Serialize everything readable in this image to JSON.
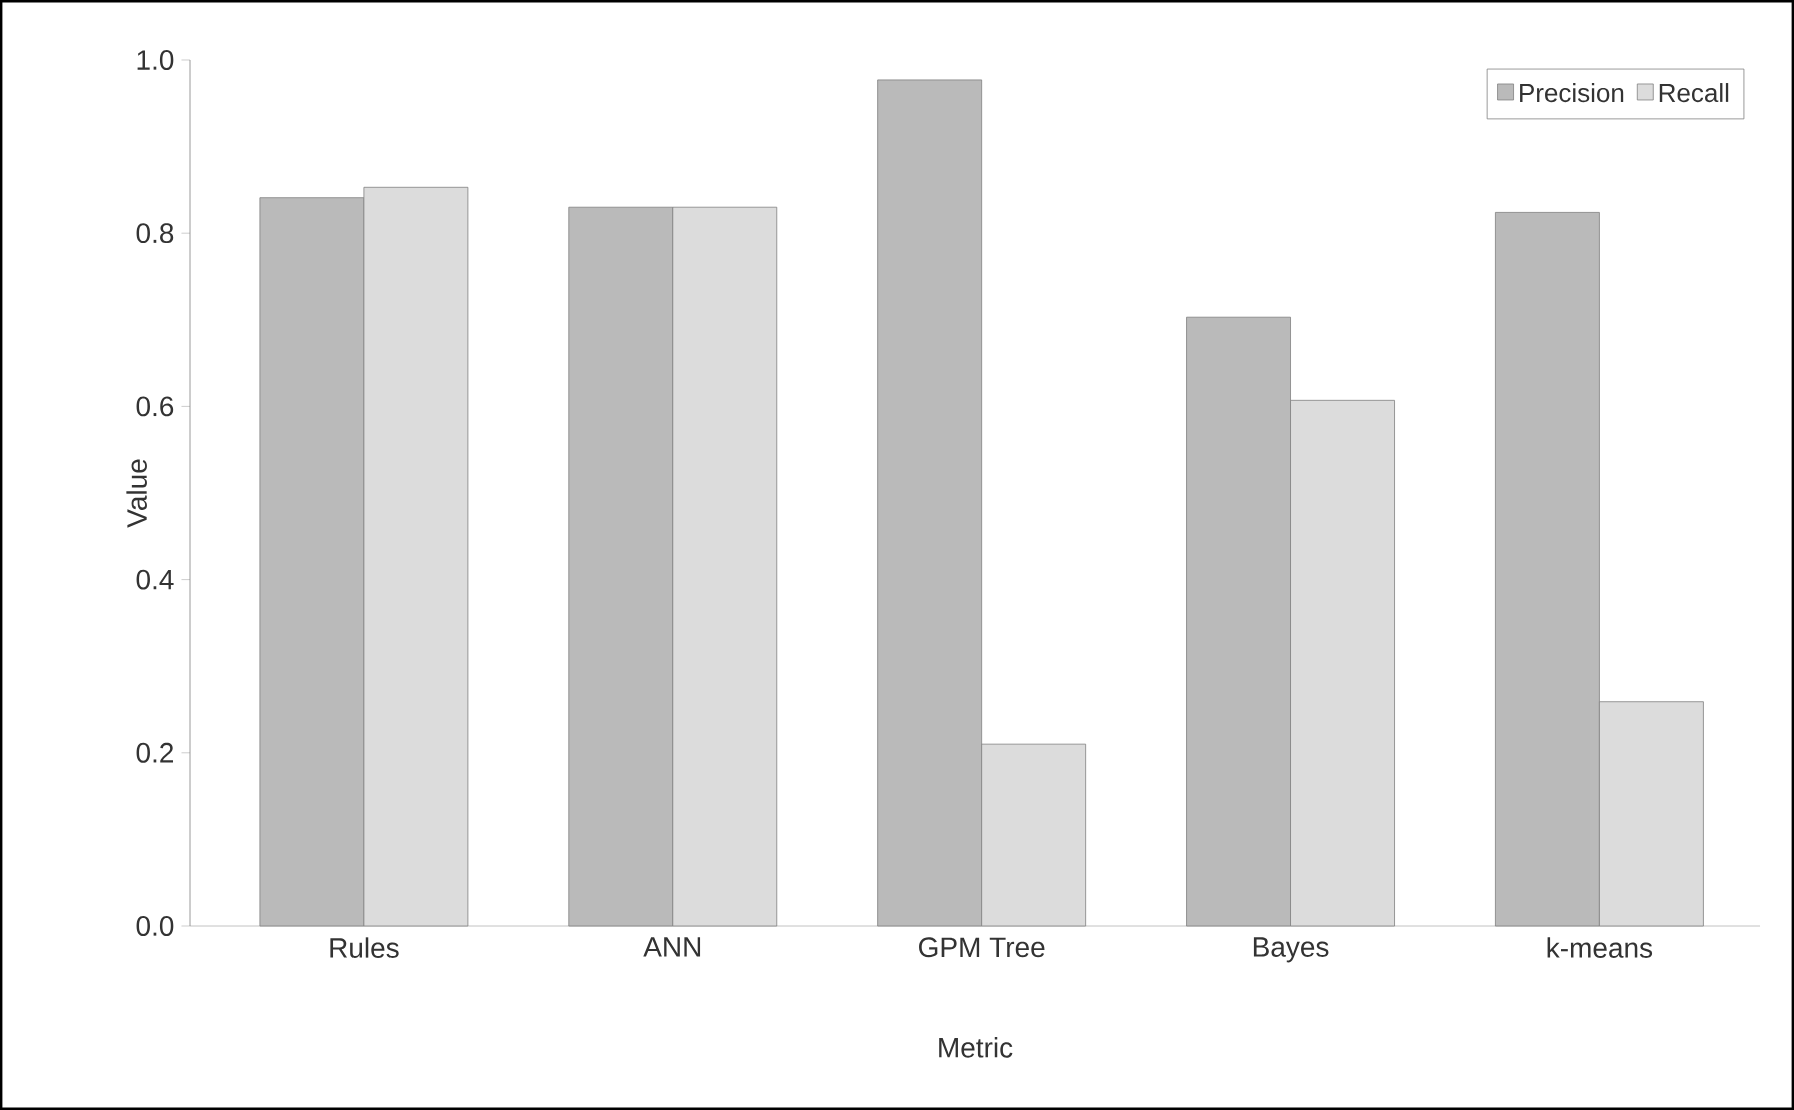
{
  "chart_data": {
    "type": "bar",
    "xlabel": "Metric",
    "ylabel": "Value",
    "categories": [
      "Rules",
      "ANN",
      "GPM Tree",
      "Bayes",
      "k-means"
    ],
    "series": [
      {
        "name": "Precision",
        "color": "#bababa",
        "values": [
          0.841,
          0.83,
          0.977,
          0.703,
          0.824
        ]
      },
      {
        "name": "Recall",
        "color": "#dcdcdc",
        "values": [
          0.853,
          0.83,
          0.21,
          0.607,
          0.259
        ]
      }
    ],
    "ylim": [
      0,
      1
    ],
    "yticks": [
      {
        "value": 0,
        "label": "0.0"
      },
      0.2,
      0.4,
      0.6,
      0.8,
      {
        "value": 1,
        "label": "1.0"
      }
    ],
    "legend": "top right"
  }
}
